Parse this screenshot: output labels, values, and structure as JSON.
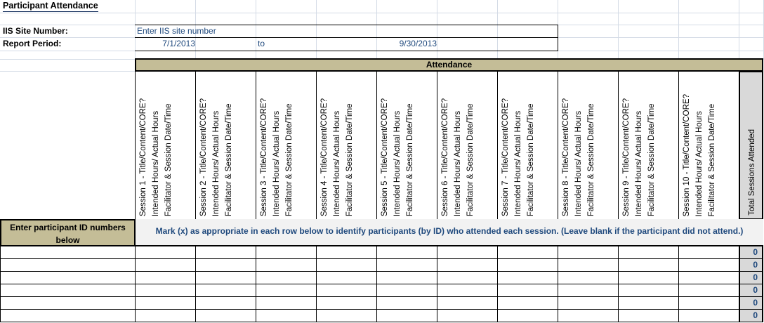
{
  "title": "Participant Attendance",
  "site_label": "IIS Site Number:",
  "site_value": "Enter IIS site number",
  "period_label": "Report Period:",
  "period_start": "7/1/2013",
  "period_to": "to",
  "period_end": "9/30/2013",
  "attendance_header": "Attendance",
  "sessions": [
    [
      "Session 1 - Title/Content/CORE?",
      "Intended Hours/ Actual Hours",
      "Facilitator & Session Date/Time"
    ],
    [
      "Session 2 - Title/Content/CORE?",
      "Intended Hours/ Actual Hours",
      "Facilitator & Session Date/Time"
    ],
    [
      "Session 3 - Title/Content/CORE?",
      "Intended Hours/ Actual Hours",
      "Facilitator & Session Date/Time"
    ],
    [
      "Session 4 - Title/Content/CORE?",
      "Intended Hours/ Actual Hours",
      "Facilitator & Session Date/Time"
    ],
    [
      "Session 5 - Title/Content/CORE?",
      "Intended Hours/ Actual Hours",
      "Facilitator & Session Date/Time"
    ],
    [
      "Session 6 - Title/Content/CORE?",
      "Intended Hours/ Actual Hours",
      "Facilitator & Session Date/Time"
    ],
    [
      "Session 7 - Title/Content/CORE?",
      "Intended Hours/ Actual Hours",
      "Facilitator & Session Date/Time"
    ],
    [
      "Session 8 - Title/Content/CORE?",
      "Intended Hours/ Actual Hours",
      "Facilitator & Session Date/Time"
    ],
    [
      "Session 9 - Title/Content/CORE?",
      "Intended Hours/ Actual Hours",
      "Facilitator & Session Date/Time"
    ],
    [
      "Session 10 - Title/Content/CORE?",
      "Intended Hours/ Actual Hours",
      "Facilitator & Session Date/Time"
    ]
  ],
  "total_header": "Total Sessions Attended",
  "id_header": "Enter participant ID numbers below",
  "instruction": "Mark (x) as appropriate in each row below to identify participants (by ID) who attended each session. (Leave blank if the participant did not attend.)",
  "totals": [
    "0",
    "0",
    "0",
    "0",
    "0",
    "0"
  ],
  "colors": {
    "header_tan": "#c4bd97",
    "text_blue": "#1f497d",
    "total_gray": "#d9d9d9",
    "instruction_bg": "#f2f2f2"
  }
}
